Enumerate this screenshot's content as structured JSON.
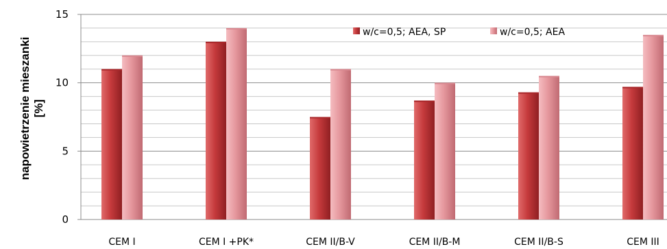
{
  "chart_data": {
    "type": "bar",
    "title": "",
    "xlabel": "",
    "ylabel": "napowietrzenie mieszanki [%]",
    "ylabel_lines": [
      "napowietrzenie mieszanki",
      "[%]"
    ],
    "ylim": [
      0,
      15
    ],
    "yticks": [
      0,
      5,
      10,
      15
    ],
    "grid": true,
    "legend_position": "top-right",
    "categories": [
      "CEM I",
      "CEM I +PK*",
      "CEM II/B-V",
      "CEM II/B-M",
      "CEM  II/B-S",
      "CEM III"
    ],
    "series": [
      {
        "name": "w/c=0,5; AEA, SP",
        "color": "#c0393b",
        "values": [
          11,
          13,
          7.5,
          8.7,
          9.3,
          9.7
        ]
      },
      {
        "name": "w/c=0,5; AEA",
        "color": "#e5979d",
        "values": [
          12,
          14,
          11,
          10,
          10.5,
          13.5
        ]
      }
    ]
  }
}
